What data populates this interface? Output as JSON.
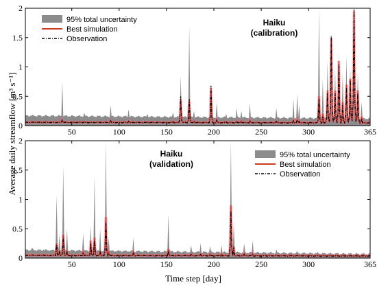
{
  "figure": {
    "ylabel": "Average daily streamflow  [m³ s⁻¹]",
    "xlabel": "Time step [day]"
  },
  "colors": {
    "band": "#8c8c8c",
    "best": "#cc3a1e",
    "best_glow": "#ff6a8a",
    "observation": "#000000"
  },
  "chart_data": [
    {
      "type": "area",
      "title": "Haiku\n(calibration)",
      "title_lines": [
        "Haiku",
        "(calibration)"
      ],
      "xlim": [
        1,
        365
      ],
      "ylim": [
        0,
        2
      ],
      "xticks": [
        50,
        100,
        150,
        200,
        250,
        300,
        365
      ],
      "yticks": [
        0,
        0.5,
        1,
        1.5,
        2
      ],
      "ytick_labels": [
        "0",
        "0.5",
        "1",
        "1.5",
        "2"
      ],
      "legend": [
        "95% total uncertainty",
        "Best simulation",
        "Observation"
      ],
      "legend_position": "top-left",
      "baseline": {
        "start": 0.06,
        "end": 0.05
      },
      "band_baseline": {
        "start": 0.17,
        "end": 0.12
      },
      "peaks": [
        {
          "x": 40,
          "upper": 0.75,
          "best": 0.1,
          "obs": 0.1
        },
        {
          "x": 63,
          "upper": 0.22,
          "best": 0.07,
          "obs": 0.07
        },
        {
          "x": 91,
          "upper": 0.35,
          "best": 0.09,
          "obs": 0.08
        },
        {
          "x": 110,
          "upper": 0.28,
          "best": 0.08,
          "obs": 0.07
        },
        {
          "x": 130,
          "upper": 0.2,
          "best": 0.07,
          "obs": 0.06
        },
        {
          "x": 157,
          "upper": 0.23,
          "best": 0.08,
          "obs": 0.07
        },
        {
          "x": 165,
          "upper": 0.85,
          "best": 0.45,
          "obs": 0.5
        },
        {
          "x": 174,
          "upper": 1.7,
          "best": 0.42,
          "obs": 0.45
        },
        {
          "x": 179,
          "upper": 0.25,
          "best": 0.08,
          "obs": 0.07
        },
        {
          "x": 197,
          "upper": 0.7,
          "best": 0.65,
          "obs": 0.68
        },
        {
          "x": 203,
          "upper": 0.4,
          "best": 0.1,
          "obs": 0.09
        },
        {
          "x": 213,
          "upper": 0.2,
          "best": 0.07,
          "obs": 0.06
        },
        {
          "x": 224,
          "upper": 0.3,
          "best": 0.08,
          "obs": 0.07
        },
        {
          "x": 229,
          "upper": 0.25,
          "best": 0.08,
          "obs": 0.07
        },
        {
          "x": 238,
          "upper": 0.38,
          "best": 0.09,
          "obs": 0.08
        },
        {
          "x": 266,
          "upper": 0.3,
          "best": 0.08,
          "obs": 0.07
        },
        {
          "x": 284,
          "upper": 0.45,
          "best": 0.09,
          "obs": 0.08
        },
        {
          "x": 288,
          "upper": 0.55,
          "best": 0.1,
          "obs": 0.09
        },
        {
          "x": 290,
          "upper": 0.35,
          "best": 0.08,
          "obs": 0.07
        },
        {
          "x": 311,
          "upper": 2.0,
          "best": 0.5,
          "obs": 0.45
        },
        {
          "x": 315,
          "upper": 0.8,
          "best": 0.2,
          "obs": 0.15
        },
        {
          "x": 320,
          "upper": 1.1,
          "best": 0.6,
          "obs": 0.55
        },
        {
          "x": 324,
          "upper": 1.6,
          "best": 1.5,
          "obs": 1.52
        },
        {
          "x": 328,
          "upper": 1.0,
          "best": 0.6,
          "obs": 0.55
        },
        {
          "x": 332,
          "upper": 1.25,
          "best": 1.1,
          "obs": 1.05
        },
        {
          "x": 336,
          "upper": 0.9,
          "best": 0.4,
          "obs": 0.35
        },
        {
          "x": 340,
          "upper": 1.2,
          "best": 0.7,
          "obs": 0.65
        },
        {
          "x": 344,
          "upper": 1.0,
          "best": 0.8,
          "obs": 0.78
        },
        {
          "x": 348,
          "upper": 2.0,
          "best": 1.95,
          "obs": 1.98
        },
        {
          "x": 352,
          "upper": 0.9,
          "best": 0.6,
          "obs": 0.55
        },
        {
          "x": 356,
          "upper": 0.4,
          "best": 0.15,
          "obs": 0.12
        }
      ]
    },
    {
      "type": "area",
      "title": "Haiku\n(validation)",
      "title_lines": [
        "Haiku",
        "(validation)"
      ],
      "xlim": [
        1,
        365
      ],
      "ylim": [
        0,
        2
      ],
      "xticks": [
        50,
        100,
        150,
        200,
        250,
        300,
        365
      ],
      "yticks": [
        0,
        0.5,
        1,
        1.5,
        2
      ],
      "ytick_labels": [
        "0",
        "0.5",
        "1",
        "1.5",
        "2"
      ],
      "legend": [
        "95% total uncertainty",
        "Best simulation",
        "Observation"
      ],
      "legend_position": "top-right",
      "baseline": {
        "start": 0.05,
        "end": 0.04
      },
      "band_baseline": {
        "start": 0.14,
        "end": 0.07
      },
      "peaks": [
        {
          "x": 8,
          "upper": 0.18,
          "best": 0.06,
          "obs": 0.05
        },
        {
          "x": 20,
          "upper": 0.15,
          "best": 0.06,
          "obs": 0.05
        },
        {
          "x": 34,
          "upper": 1.08,
          "best": 0.25,
          "obs": 0.22
        },
        {
          "x": 37,
          "upper": 0.4,
          "best": 0.12,
          "obs": 0.1
        },
        {
          "x": 41,
          "upper": 1.57,
          "best": 0.4,
          "obs": 0.35
        },
        {
          "x": 45,
          "upper": 0.5,
          "best": 0.12,
          "obs": 0.1
        },
        {
          "x": 62,
          "upper": 0.42,
          "best": 0.1,
          "obs": 0.08
        },
        {
          "x": 70,
          "upper": 0.55,
          "best": 0.3,
          "obs": 0.25
        },
        {
          "x": 74,
          "upper": 1.38,
          "best": 0.35,
          "obs": 0.3
        },
        {
          "x": 80,
          "upper": 0.5,
          "best": 0.12,
          "obs": 0.1
        },
        {
          "x": 86,
          "upper": 2.0,
          "best": 0.7,
          "obs": 0.62
        },
        {
          "x": 89,
          "upper": 0.35,
          "best": 0.1,
          "obs": 0.08
        },
        {
          "x": 115,
          "upper": 0.35,
          "best": 0.1,
          "obs": 0.08
        },
        {
          "x": 152,
          "upper": 0.75,
          "best": 0.15,
          "obs": 0.12
        },
        {
          "x": 176,
          "upper": 0.22,
          "best": 0.07,
          "obs": 0.06
        },
        {
          "x": 186,
          "upper": 0.25,
          "best": 0.07,
          "obs": 0.06
        },
        {
          "x": 196,
          "upper": 0.2,
          "best": 0.07,
          "obs": 0.06
        },
        {
          "x": 208,
          "upper": 0.22,
          "best": 0.07,
          "obs": 0.06
        },
        {
          "x": 218,
          "upper": 2.0,
          "best": 0.9,
          "obs": 0.8
        },
        {
          "x": 221,
          "upper": 0.6,
          "best": 0.2,
          "obs": 0.18
        },
        {
          "x": 232,
          "upper": 0.25,
          "best": 0.08,
          "obs": 0.06
        },
        {
          "x": 241,
          "upper": 0.3,
          "best": 0.08,
          "obs": 0.06
        },
        {
          "x": 266,
          "upper": 0.15,
          "best": 0.05,
          "obs": 0.04
        },
        {
          "x": 288,
          "upper": 0.12,
          "best": 0.05,
          "obs": 0.04
        },
        {
          "x": 310,
          "upper": 0.1,
          "best": 0.04,
          "obs": 0.04
        }
      ]
    }
  ]
}
